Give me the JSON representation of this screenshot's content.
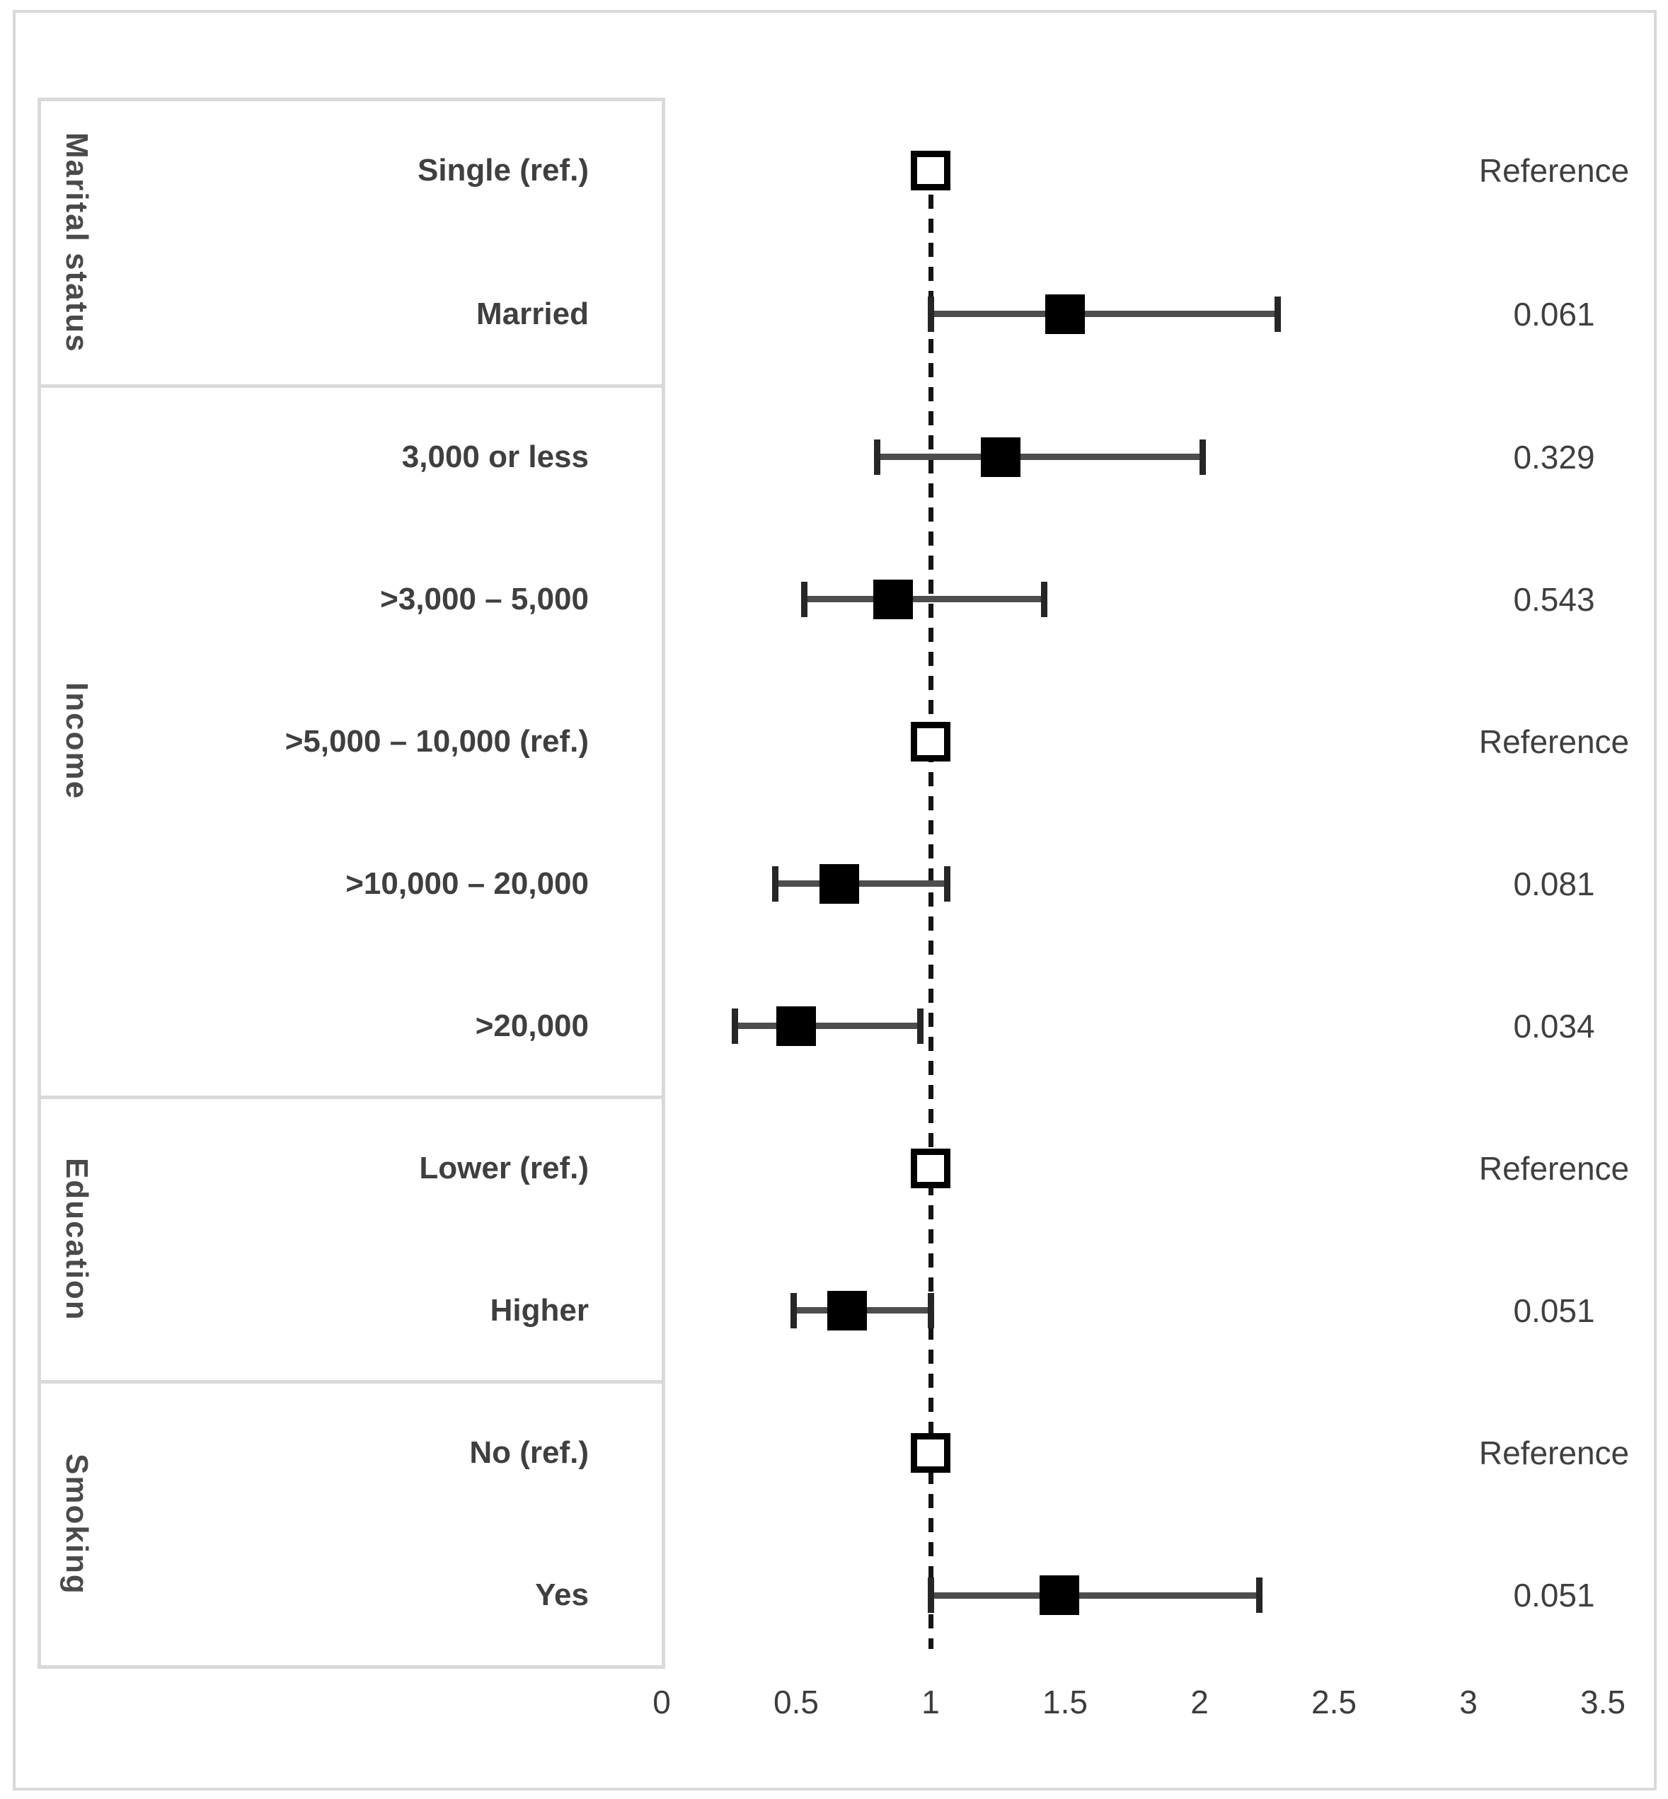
{
  "chart_data": {
    "type": "scatter",
    "variant": "forest-plot",
    "title": "",
    "xlabel": "",
    "ylabel": "",
    "x_axis": {
      "range": [
        0,
        3.5
      ],
      "ticks": [
        "0",
        "0.5",
        "1",
        "1.5",
        "2",
        "2.5",
        "3",
        "3.5"
      ],
      "reference_line_x": 1,
      "grid": false
    },
    "legend": null,
    "groups": [
      {
        "name": "Marital status",
        "rows": [
          {
            "label": "Single (ref.)",
            "marker": "open",
            "estimate": 1.0,
            "ci_low": null,
            "ci_high": null,
            "p_value": "Reference"
          },
          {
            "label": "Married",
            "marker": "filled",
            "estimate": 1.5,
            "ci_low": 1.0,
            "ci_high": 2.29,
            "p_value": "0.061"
          }
        ]
      },
      {
        "name": "Income",
        "rows": [
          {
            "label": "3,000 or less",
            "marker": "filled",
            "estimate": 1.26,
            "ci_low": 0.8,
            "ci_high": 2.01,
            "p_value": "0.329"
          },
          {
            "label": ">3,000 – 5,000",
            "marker": "filled",
            "estimate": 0.86,
            "ci_low": 0.53,
            "ci_high": 1.42,
            "p_value": "0.543"
          },
          {
            "label": ">5,000 – 10,000 (ref.)",
            "marker": "open",
            "estimate": 1.0,
            "ci_low": null,
            "ci_high": null,
            "p_value": "Reference"
          },
          {
            "label": ">10,000 – 20,000",
            "marker": "filled",
            "estimate": 0.66,
            "ci_low": 0.42,
            "ci_high": 1.06,
            "p_value": "0.081"
          },
          {
            "label": ">20,000",
            "marker": "filled",
            "estimate": 0.5,
            "ci_low": 0.27,
            "ci_high": 0.96,
            "p_value": "0.034"
          }
        ]
      },
      {
        "name": "Education",
        "rows": [
          {
            "label": "Lower (ref.)",
            "marker": "open",
            "estimate": 1.0,
            "ci_low": null,
            "ci_high": null,
            "p_value": "Reference"
          },
          {
            "label": "Higher",
            "marker": "filled",
            "estimate": 0.69,
            "ci_low": 0.49,
            "ci_high": 1.0,
            "p_value": "0.051"
          }
        ]
      },
      {
        "name": "Smoking",
        "rows": [
          {
            "label": "No (ref.)",
            "marker": "open",
            "estimate": 1.0,
            "ci_low": null,
            "ci_high": null,
            "p_value": "Reference"
          },
          {
            "label": "Yes",
            "marker": "filled",
            "estimate": 1.48,
            "ci_low": 1.0,
            "ci_high": 2.22,
            "p_value": "0.051"
          }
        ]
      }
    ],
    "colors": {
      "marker_filled": "#000000",
      "marker_open_fill": "#ffffff",
      "marker_border": "#000000",
      "error_bar": "#4d4d4d",
      "reference_line": "#141414",
      "table_border": "#d9d9d9",
      "text": "#3f3f3f"
    }
  }
}
